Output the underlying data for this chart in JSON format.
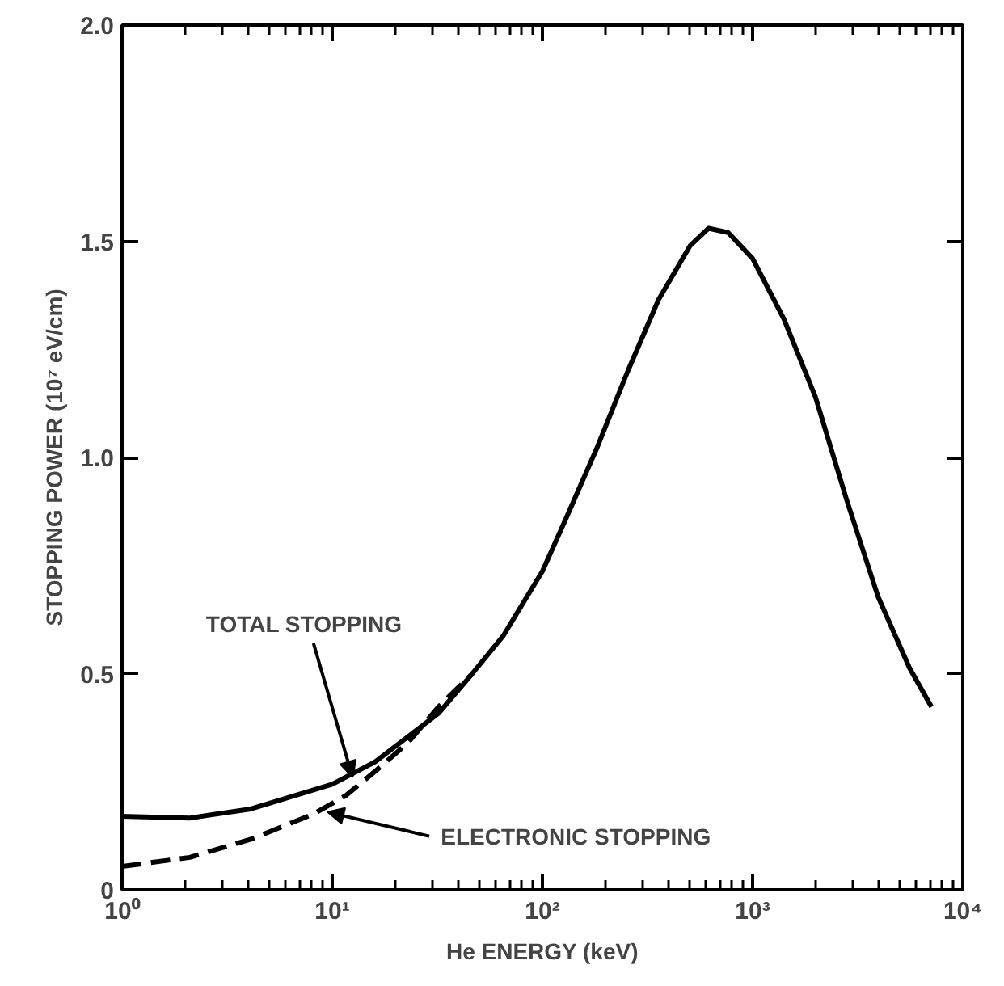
{
  "chart_data": {
    "type": "line",
    "xlabel": "He ENERGY (keV)",
    "ylabel": "STOPPING POWER (10⁷ eV/cm)",
    "log": "x",
    "grid": false,
    "xlim": [
      1,
      10000
    ],
    "ylim": [
      0,
      2.0
    ],
    "xticks": [
      {
        "value": 1,
        "label": "10⁰"
      },
      {
        "value": 10,
        "label": "10¹"
      },
      {
        "value": 100,
        "label": "10²"
      },
      {
        "value": 1000,
        "label": "10³"
      },
      {
        "value": 10000,
        "label": "10⁴"
      }
    ],
    "yticks": [
      0,
      0.5,
      {
        "value": 1.0,
        "label": "1.0"
      },
      1.5,
      {
        "value": 2.0,
        "label": "2.0"
      }
    ],
    "series": [
      {
        "color": "#000000",
        "line_style": "solid",
        "x": [
          1,
          2.1,
          4.1,
          10,
          16,
          32,
          46,
          65,
          100,
          129,
          181,
          255,
          357,
          505,
          617,
          765,
          1000,
          1410,
          1990,
          2810,
          3960,
          5580,
          7100
        ],
        "values": [
          0.17,
          0.166,
          0.187,
          0.244,
          0.296,
          0.408,
          0.498,
          0.587,
          0.737,
          0.857,
          1.02,
          1.2,
          1.365,
          1.49,
          1.53,
          1.52,
          1.46,
          1.32,
          1.14,
          0.9,
          0.677,
          0.513,
          0.423
        ]
      },
      {
        "color": "#000000",
        "line_style": "dashed",
        "x": [
          1,
          2.1,
          4.1,
          8.2,
          11.6,
          16,
          23,
          32,
          46
        ],
        "values": [
          0.054,
          0.075,
          0.117,
          0.176,
          0.218,
          0.274,
          0.341,
          0.423,
          0.498
        ]
      }
    ],
    "annotations": [
      {
        "text": "TOTAL STOPPING",
        "x": 12.5,
        "y": 0.26
      },
      {
        "text": "ELECTRONIC STOPPING",
        "x": 9.5,
        "y": 0.18
      }
    ]
  }
}
